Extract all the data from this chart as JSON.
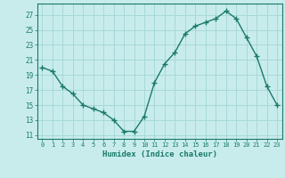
{
  "x": [
    0,
    1,
    2,
    3,
    4,
    5,
    6,
    7,
    8,
    9,
    10,
    11,
    12,
    13,
    14,
    15,
    16,
    17,
    18,
    19,
    20,
    21,
    22,
    23
  ],
  "y": [
    20.0,
    19.5,
    17.5,
    16.5,
    15.0,
    14.5,
    14.0,
    13.0,
    11.5,
    11.5,
    13.5,
    18.0,
    20.5,
    22.0,
    24.5,
    25.5,
    26.0,
    26.5,
    27.5,
    26.5,
    24.0,
    21.5,
    17.5,
    15.0
  ],
  "yticks": [
    11,
    13,
    15,
    17,
    19,
    21,
    23,
    25,
    27
  ],
  "xticks": [
    0,
    1,
    2,
    3,
    4,
    5,
    6,
    7,
    8,
    9,
    10,
    11,
    12,
    13,
    14,
    15,
    16,
    17,
    18,
    19,
    20,
    21,
    22,
    23
  ],
  "xlabel": "Humidex (Indice chaleur)",
  "line_color": "#1a7a6a",
  "marker_color": "#1a7a6a",
  "bg_color": "#c8ecec",
  "grid_color": "#a8d8d8",
  "ylim": [
    10.5,
    28.5
  ],
  "xlim": [
    -0.5,
    23.5
  ]
}
